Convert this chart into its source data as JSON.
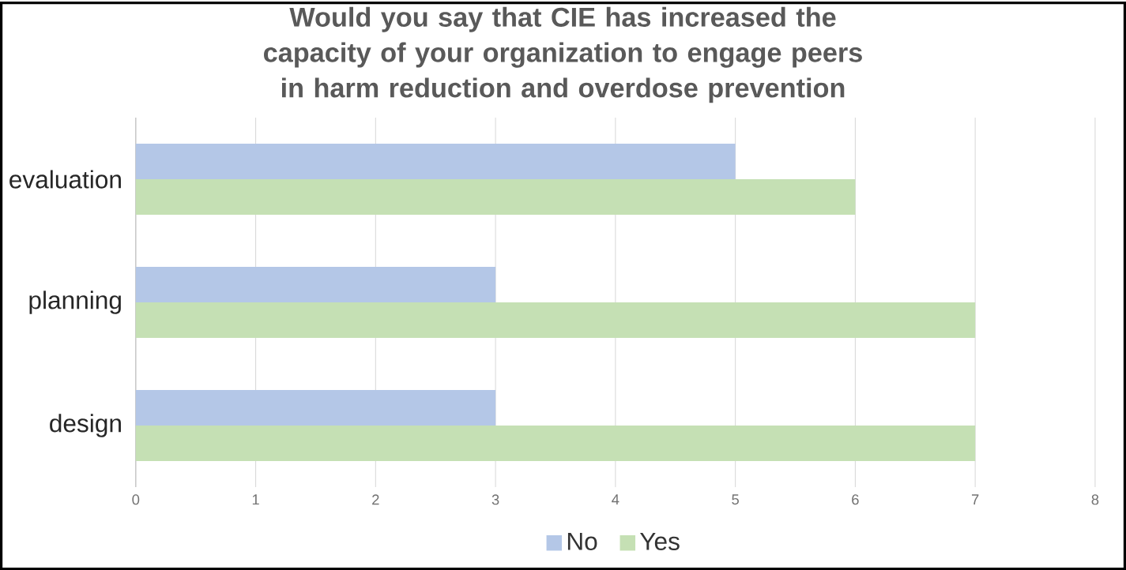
{
  "chart_data": {
    "type": "bar",
    "orientation": "horizontal",
    "title": "Would you say that CIE has increased the capacity of your organization to engage peers in harm reduction and overdose prevention",
    "categories": [
      "evaluation",
      "planning",
      "design"
    ],
    "series": [
      {
        "name": "No",
        "color": "#b4c7e7",
        "values": [
          5,
          3,
          3
        ]
      },
      {
        "name": "Yes",
        "color": "#c5e0b4",
        "values": [
          6,
          7,
          7
        ]
      }
    ],
    "xlim": [
      0,
      8
    ],
    "xticks": [
      0,
      1,
      2,
      3,
      4,
      5,
      6,
      7,
      8
    ],
    "grid": "x",
    "legend": "bottom"
  }
}
